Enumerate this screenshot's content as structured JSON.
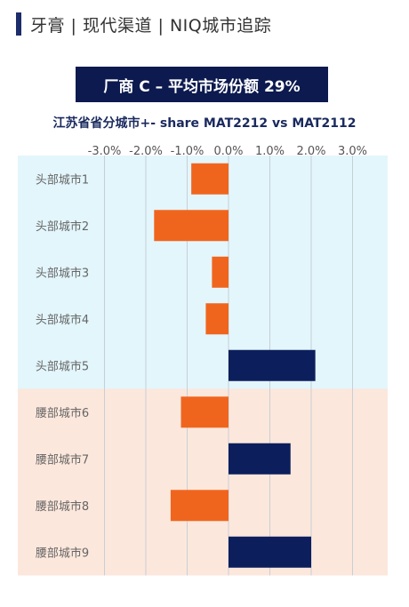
{
  "header": {
    "title": "牙膏 | 现代渠道 | NIQ城市追踪"
  },
  "banner": {
    "text": "厂商 C – 平均市场份额 29%"
  },
  "chart_data": {
    "type": "bar",
    "orientation": "horizontal",
    "title": "江苏省省分城市+- share MAT2212 vs MAT2112",
    "categories": [
      "头部城市1",
      "头部城市2",
      "头部城市3",
      "头部城市4",
      "头部城市5",
      "腰部城市6",
      "腰部城市7",
      "腰部城市8",
      "腰部城市9"
    ],
    "values": [
      -0.9,
      -1.8,
      -0.4,
      -0.55,
      2.1,
      -1.15,
      1.5,
      -1.4,
      2.0
    ],
    "xlim": [
      -3.0,
      3.0
    ],
    "xticks": [
      "-3.0%",
      "-2.0%",
      "-1.0%",
      "0.0%",
      "1.0%",
      "2.0%",
      "3.0%"
    ],
    "grid": true,
    "groups": [
      {
        "name": "头部城市",
        "categories": 5,
        "color": "#e3f6fc"
      },
      {
        "name": "腰部城市",
        "categories": 4,
        "color": "#fce7dc"
      }
    ],
    "colors": {
      "negative": "#f0651e",
      "positive": "#0c1f5c",
      "grid": "#c8cfd6"
    }
  }
}
